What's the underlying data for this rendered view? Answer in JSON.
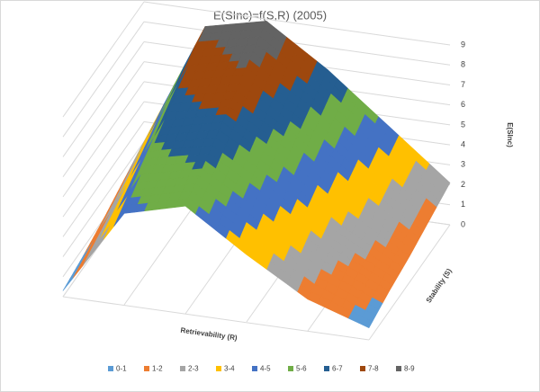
{
  "chart_data": {
    "type": "surface",
    "title": "E(SInc)=f(S,R) (2005)",
    "x_label": "Retrievability (R)",
    "y_label": "Stability (S)",
    "z_label": "E(SInc)",
    "zlim": [
      0,
      9
    ],
    "zticks": [
      0,
      1,
      2,
      3,
      4,
      5,
      6,
      7,
      8,
      9
    ],
    "z": [
      [
        0.3,
        4.6,
        5.4,
        3.4,
        1.6,
        0.6
      ],
      [
        0.6,
        5.5,
        6.2,
        4.4,
        2.4,
        1.0
      ],
      [
        1.0,
        6.4,
        7.1,
        5.3,
        3.1,
        1.3
      ],
      [
        1.5,
        7.3,
        8.0,
        6.1,
        3.8,
        1.7
      ],
      [
        2.0,
        8.2,
        8.9,
        6.9,
        4.5,
        2.1
      ]
    ],
    "bands": [
      {
        "name": "0-1",
        "color": "#5b9bd5"
      },
      {
        "name": "1-2",
        "color": "#ed7d31"
      },
      {
        "name": "2-3",
        "color": "#a5a5a5"
      },
      {
        "name": "3-4",
        "color": "#ffc000"
      },
      {
        "name": "4-5",
        "color": "#4472c4"
      },
      {
        "name": "5-6",
        "color": "#70ad47"
      },
      {
        "name": "6-7",
        "color": "#255e91"
      },
      {
        "name": "7-8",
        "color": "#9e480e"
      },
      {
        "name": "8-9",
        "color": "#636363"
      }
    ]
  }
}
